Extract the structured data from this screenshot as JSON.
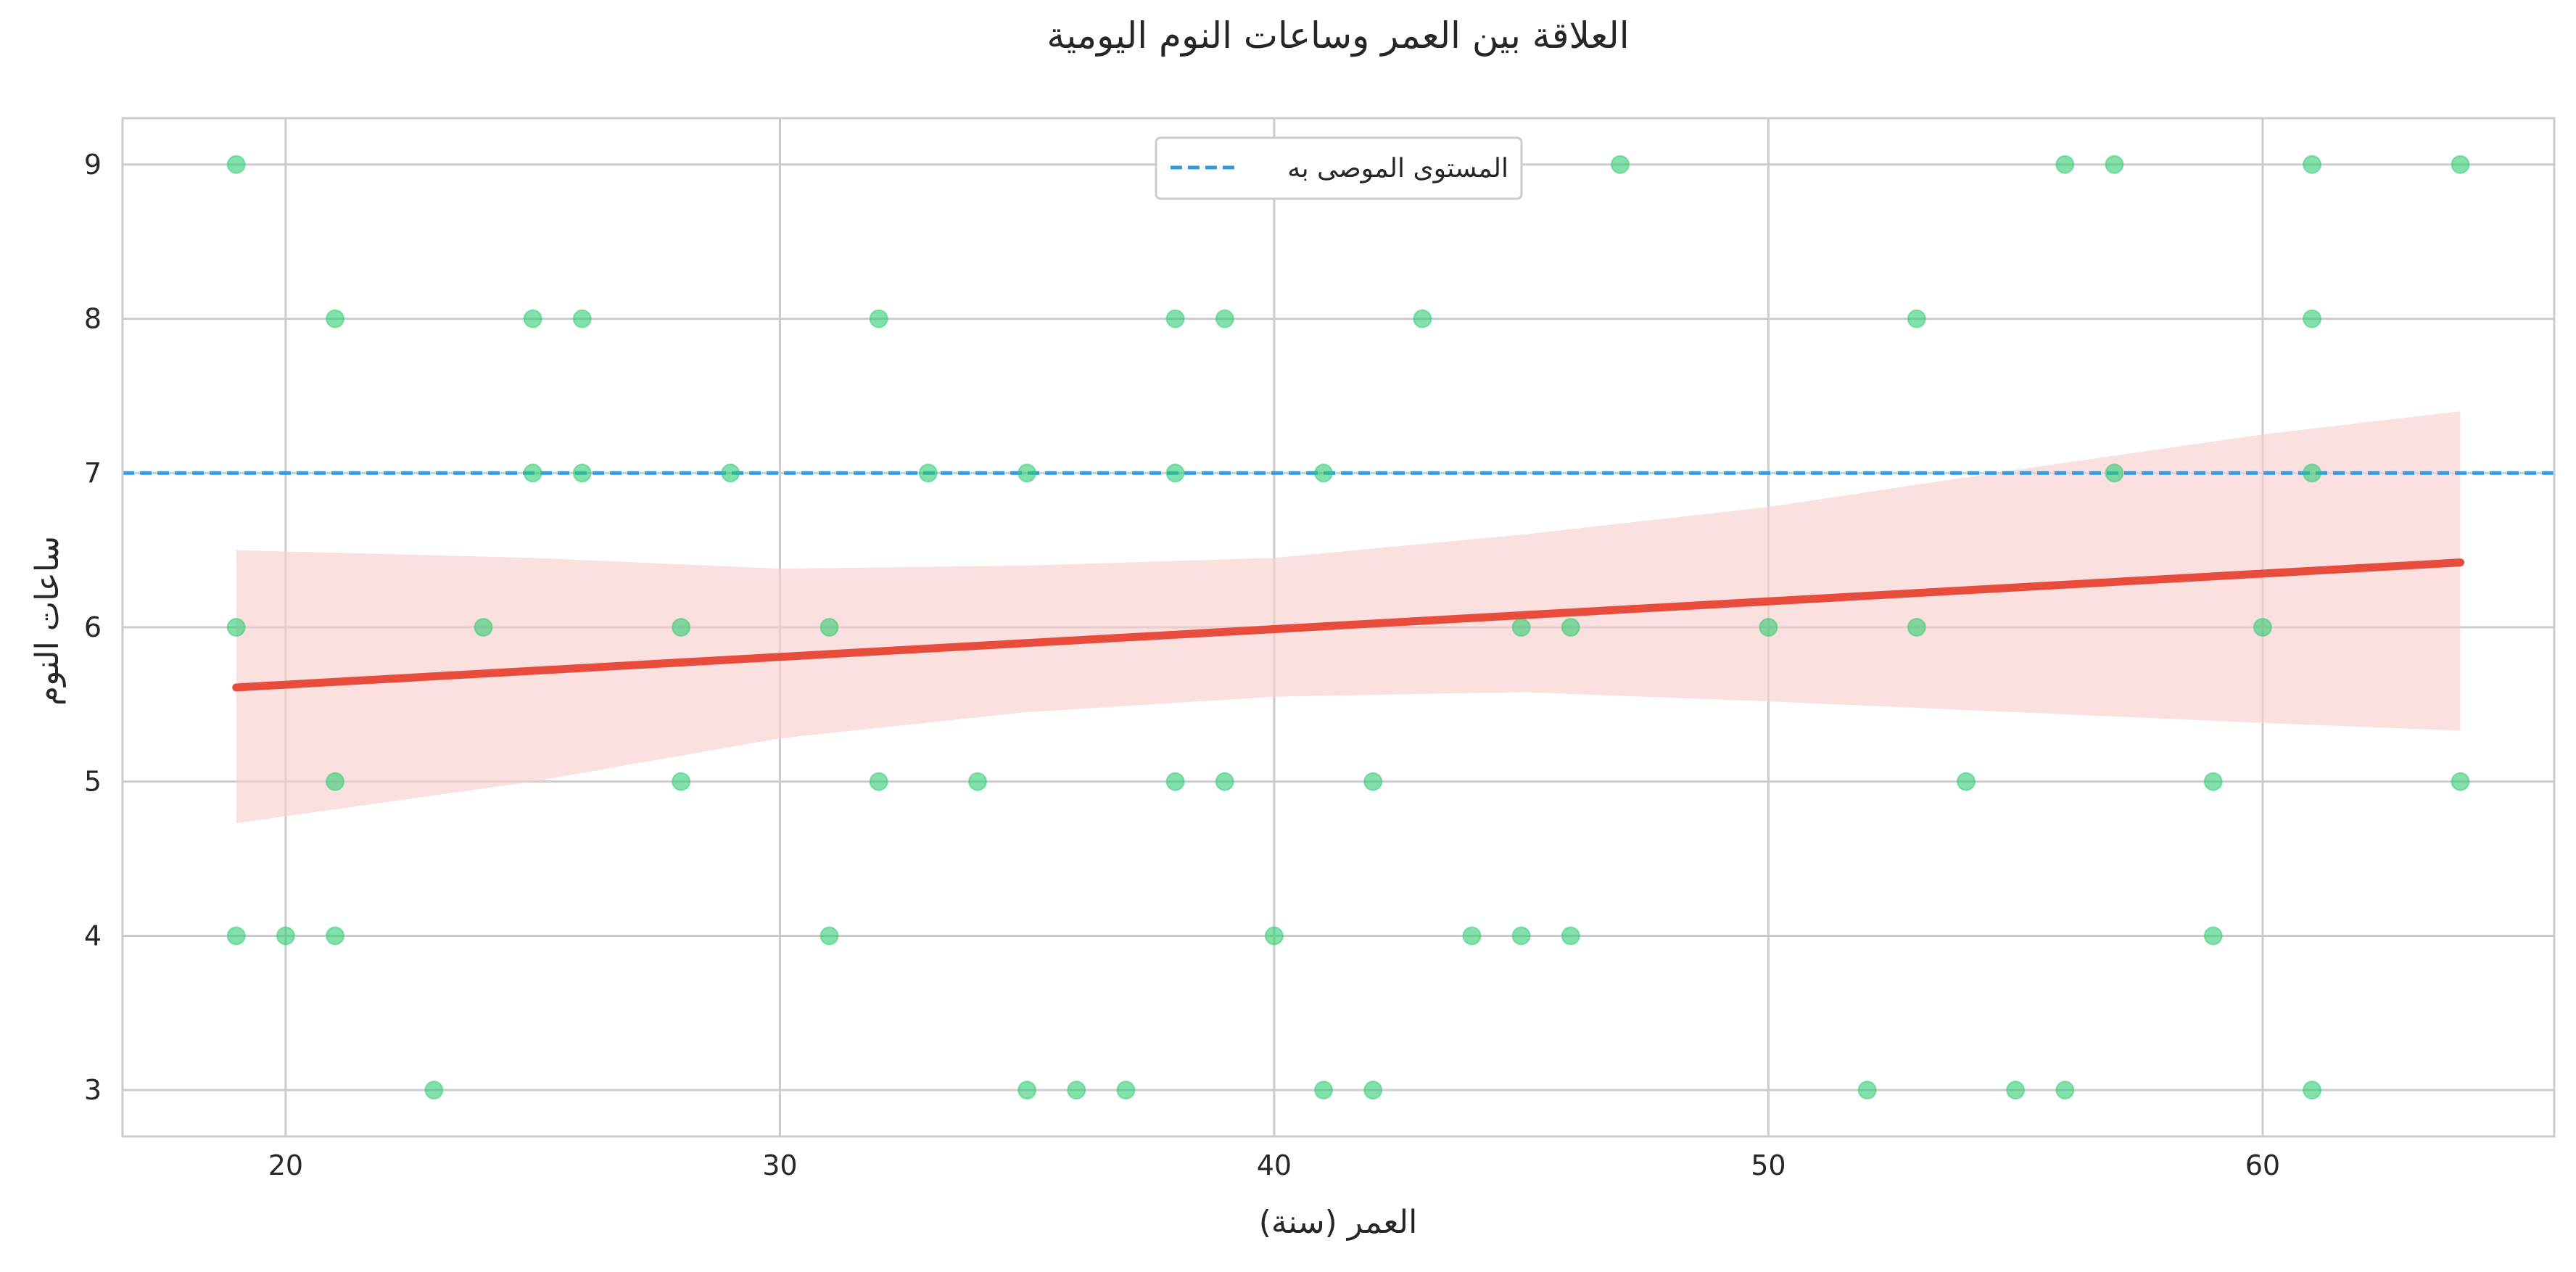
{
  "chart_data": {
    "type": "scatter",
    "title": "العلاقة بين العمر وساعات النوم اليومية",
    "xlabel": "العمر (سنة)",
    "ylabel": "ساعات النوم",
    "xlim": [
      16.7,
      65.9
    ],
    "ylim": [
      2.7,
      9.3
    ],
    "xticks": [
      20,
      30,
      40,
      50,
      60
    ],
    "yticks": [
      3,
      4,
      5,
      6,
      7,
      8,
      9
    ],
    "grid": true,
    "legend": {
      "placement": "top-center",
      "entries": [
        "المستوى الموصى به"
      ]
    },
    "colors": {
      "points": "#2ecc71",
      "regression_line": "#e74c3c",
      "confidence_band": "#f8d0cc",
      "reference_line": "#3498db",
      "grid": "#cccccc",
      "frame": "#cccccc"
    },
    "reference_line": {
      "y": 7,
      "style": "dashed",
      "label": "المستوى الموصى به"
    },
    "regression": {
      "x": [
        19,
        64
      ],
      "y": [
        5.61,
        6.42
      ],
      "ci_x": [
        19,
        25,
        30,
        35,
        40,
        45,
        50,
        55,
        60,
        64
      ],
      "ci_lower": [
        4.73,
        5.0,
        5.28,
        5.45,
        5.55,
        5.58,
        5.52,
        5.45,
        5.38,
        5.33
      ],
      "ci_upper": [
        6.5,
        6.45,
        6.38,
        6.4,
        6.45,
        6.6,
        6.78,
        7.02,
        7.25,
        7.4
      ]
    },
    "series": [
      {
        "x": [
          19,
          19,
          19,
          20,
          21,
          21,
          21,
          23,
          24,
          25,
          25,
          26,
          26,
          28,
          28,
          29,
          31,
          31,
          32,
          32,
          33,
          34,
          35,
          35,
          36,
          37,
          38,
          38,
          38,
          39,
          39,
          40,
          41,
          41,
          42,
          42,
          43,
          44,
          45,
          45,
          46,
          46,
          47,
          50,
          52,
          53,
          53,
          54,
          55,
          56,
          56,
          57,
          57,
          59,
          59,
          60,
          61,
          61,
          61,
          61,
          64,
          64
        ],
        "y": [
          9,
          6,
          4,
          4,
          8,
          5,
          4,
          3,
          6,
          8,
          7,
          8,
          7,
          6,
          5,
          7,
          6,
          4,
          8,
          5,
          7,
          5,
          7,
          3,
          3,
          3,
          8,
          7,
          5,
          8,
          5,
          4,
          7,
          3,
          5,
          3,
          8,
          4,
          6,
          4,
          6,
          4,
          9,
          6,
          3,
          8,
          6,
          5,
          3,
          9,
          3,
          9,
          7,
          5,
          4,
          6,
          9,
          8,
          7,
          3,
          9,
          5
        ]
      }
    ]
  }
}
